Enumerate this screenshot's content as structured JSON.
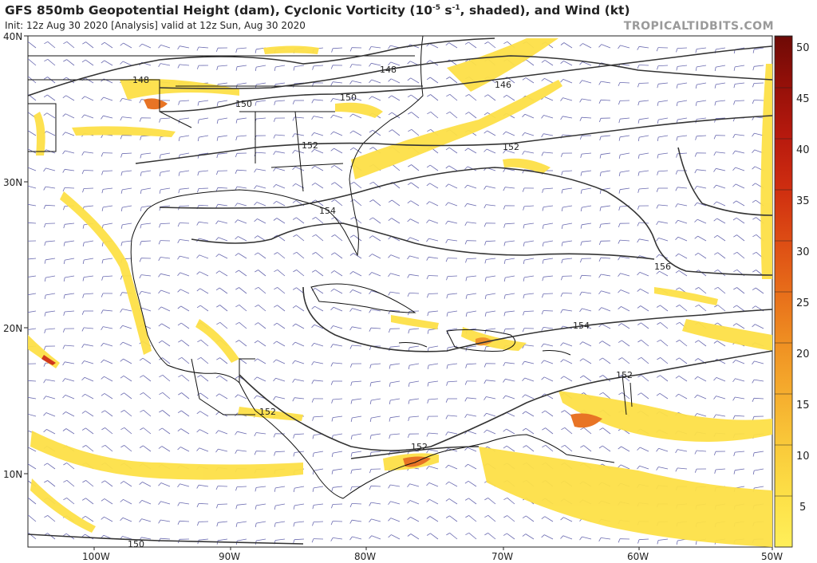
{
  "header": {
    "title": "GFS 850mb Geopotential Height (dam), Cyclonic Vorticity (10",
    "title_sup": "-5",
    "title_mid": " s",
    "title_sup2": "-1",
    "title_end": ", shaded), and Wind (kt)",
    "subtitle": "Init: 12z Aug 30 2020   [Analysis]   valid at 12z Sun, Aug 30 2020",
    "brand": "TROPICALTIDBITS.COM"
  },
  "map": {
    "lat_labels": [
      "40N",
      "30N",
      "20N",
      "10N"
    ],
    "lon_labels": [
      "100W",
      "90W",
      "80W",
      "70W",
      "60W",
      "50W"
    ],
    "contour_labels": [
      "148",
      "148",
      "146",
      "150",
      "150",
      "152",
      "152",
      "154",
      "156",
      "154",
      "152",
      "152",
      "152",
      "150"
    ]
  },
  "colorbar": {
    "ticks": [
      "50",
      "45",
      "40",
      "35",
      "30",
      "25",
      "20",
      "15",
      "10",
      "5"
    ],
    "colors": [
      "#ffef5a",
      "#fde047",
      "#f9c93a",
      "#f5ad2e",
      "#ef8f22",
      "#e76d1a",
      "#dd4c14",
      "#cf2e10",
      "#b81a0e",
      "#961009",
      "#6e0a06"
    ]
  }
}
